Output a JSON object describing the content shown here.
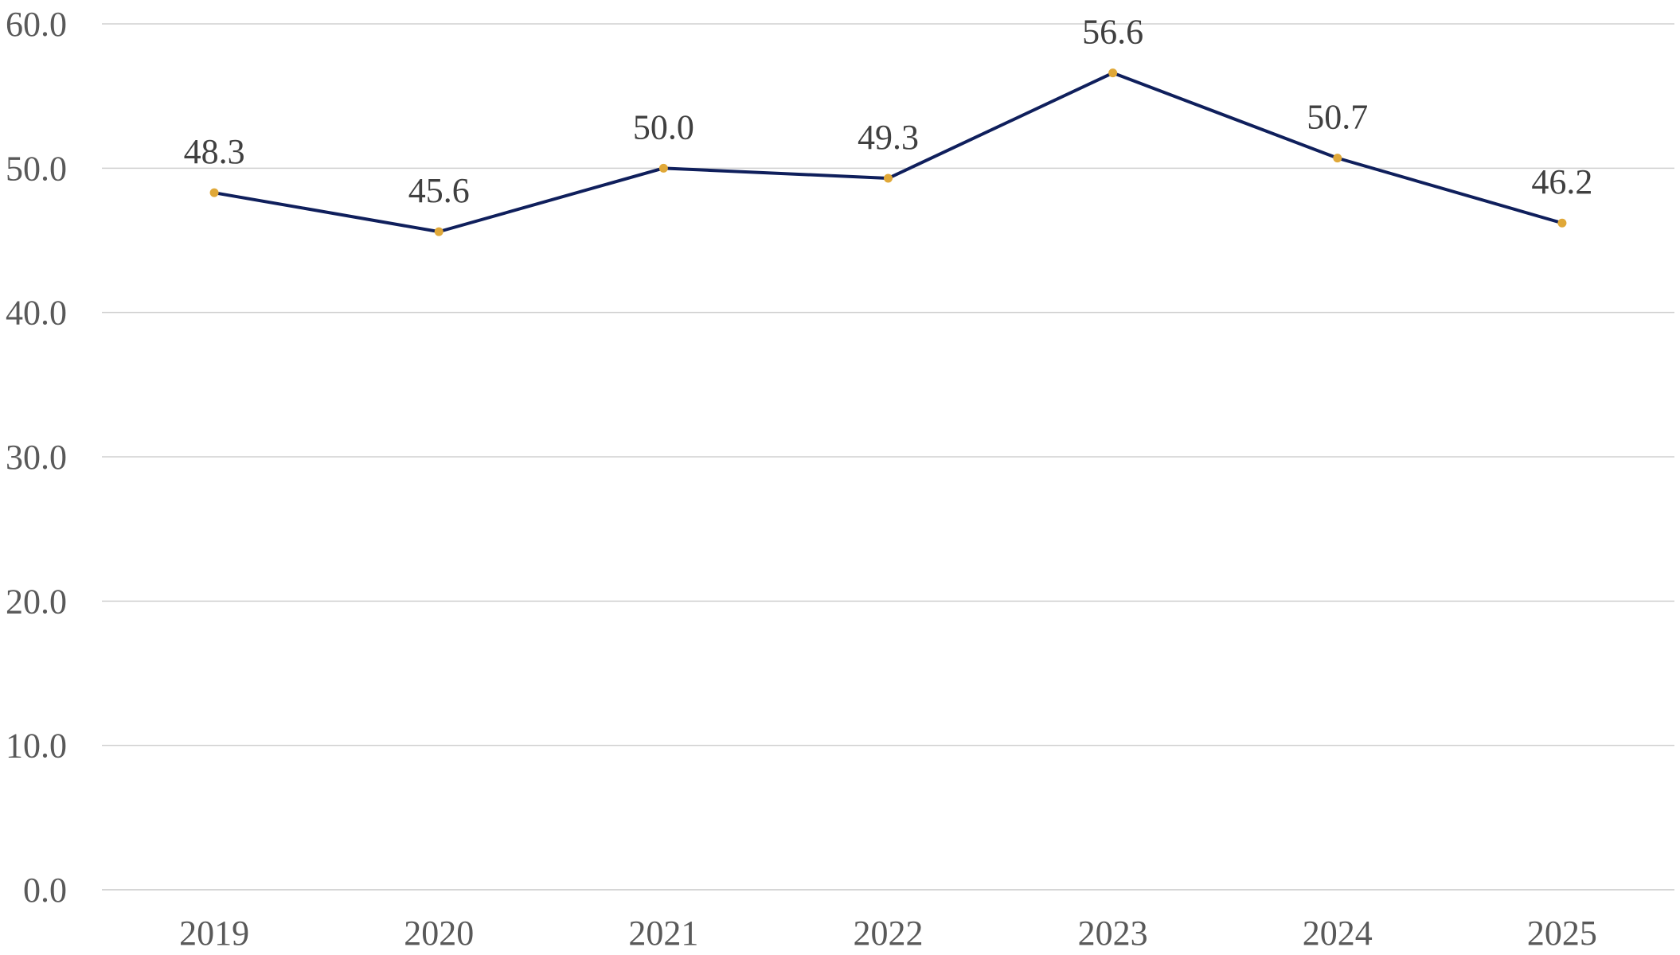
{
  "chart_data": {
    "type": "line",
    "categories": [
      "2019",
      "2020",
      "2021",
      "2022",
      "2023",
      "2024",
      "2025"
    ],
    "series": [
      {
        "values": [
          48.3,
          45.6,
          50.0,
          49.3,
          56.6,
          50.7,
          46.2
        ],
        "value_labels": [
          "48.3",
          "45.6",
          "50.0",
          "49.3",
          "56.6",
          "50.7",
          "46.2"
        ],
        "line_color": "#0f1f5c",
        "marker_color": "#e0a838"
      }
    ],
    "y_ticks": [
      0,
      10,
      20,
      30,
      40,
      50,
      60
    ],
    "y_tick_labels": [
      "0.0",
      "10.0",
      "20.0",
      "30.0",
      "40.0",
      "50.0",
      "60.0"
    ],
    "ylim": [
      0,
      60
    ],
    "grid": true,
    "legend": "none",
    "title": "",
    "xlabel": "",
    "ylabel": ""
  }
}
